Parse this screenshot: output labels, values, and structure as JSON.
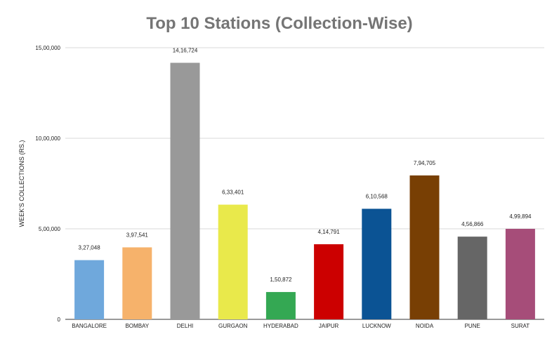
{
  "chart_data": {
    "type": "bar",
    "title": "Top 10 Stations (Collection-Wise)",
    "xlabel": "",
    "ylabel": "WEEK'S COLLECTIONS (RS.)",
    "ylim": [
      0,
      1500000
    ],
    "yticks": [
      0,
      500000,
      1000000,
      1500000
    ],
    "ytick_labels": [
      "0",
      "5,00,000",
      "10,00,000",
      "15,00,000"
    ],
    "grid": true,
    "legend": "none",
    "categories": [
      "BANGALORE",
      "BOMBAY",
      "DELHI",
      "GURGAON",
      "HYDERABAD",
      "JAIPUR",
      "LUCKNOW",
      "NOIDA",
      "PUNE",
      "SURAT"
    ],
    "values": [
      327048,
      397541,
      1416724,
      633401,
      150872,
      414791,
      610568,
      794705,
      456866,
      499894
    ],
    "data_labels": [
      "3,27,048",
      "3,97,541",
      "14,16,724",
      "6,33,401",
      "1,50,872",
      "4,14,791",
      "6,10,568",
      "7,94,705",
      "4,56,866",
      "4,99,894"
    ],
    "colors": [
      "#6fa8dc",
      "#f6b26b",
      "#999999",
      "#e9e94b",
      "#34a853",
      "#cc0000",
      "#0b5394",
      "#783f04",
      "#666666",
      "#a64d79"
    ]
  }
}
